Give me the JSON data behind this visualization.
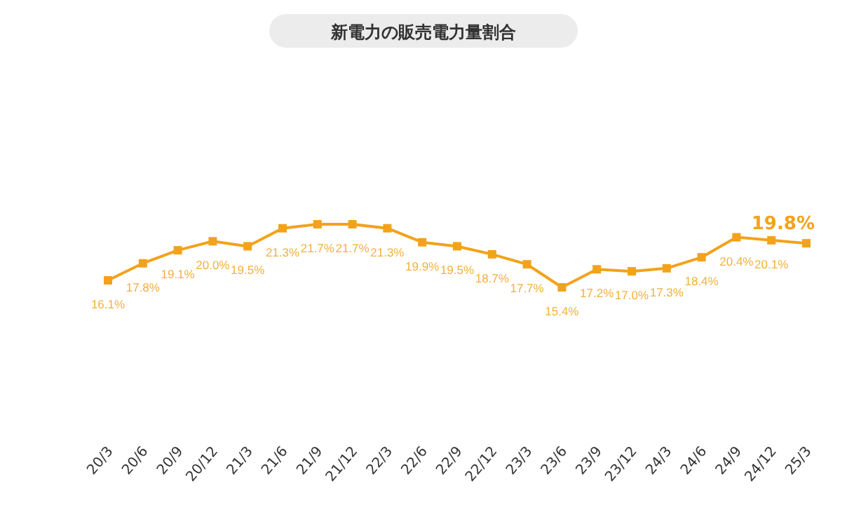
{
  "chart_data": {
    "type": "line",
    "title": "新電力の販売電力量割合",
    "categories": [
      "20/3",
      "20/6",
      "20/9",
      "20/12",
      "21/3",
      "21/6",
      "21/9",
      "21/12",
      "22/3",
      "22/6",
      "22/9",
      "22/12",
      "23/3",
      "23/6",
      "23/9",
      "23/12",
      "24/3",
      "24/6",
      "24/9",
      "24/12",
      "25/3"
    ],
    "series": [
      {
        "color": "#f3a21b",
        "values": [
          16.1,
          17.8,
          19.1,
          20.0,
          19.5,
          21.3,
          21.7,
          21.7,
          21.3,
          19.9,
          19.5,
          18.7,
          17.7,
          15.4,
          17.2,
          17.0,
          17.3,
          18.4,
          20.4,
          20.1,
          19.8
        ],
        "value_labels": [
          "16.1%",
          "17.8%",
          "19.1%",
          "20.0%",
          "19.5%",
          "21.3%",
          "21.7%",
          "21.7%",
          "21.3%",
          "19.9%",
          "19.5%",
          "18.7%",
          "17.7%",
          "15.4%",
          "17.2%",
          "17.0%",
          "17.3%",
          "18.4%",
          "20.4%",
          "20.1%",
          "19.8%"
        ]
      }
    ],
    "marker": "square",
    "line_style": "solid"
  }
}
